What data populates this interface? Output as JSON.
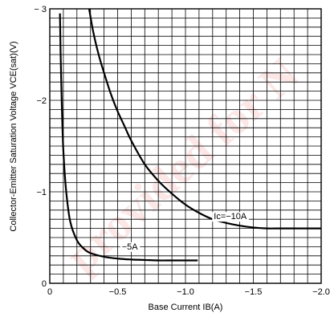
{
  "chart_data": {
    "type": "line",
    "xlabel": "Base Current IB(A)",
    "ylabel": "Collector-Emitter Saturation Voltage VCE(sat)(V)",
    "xlim": [
      0,
      -2.0
    ],
    "ylim": [
      0,
      -3
    ],
    "x_ticks": [
      0,
      -0.5,
      -1.0,
      -1.5,
      -2.0
    ],
    "x_tick_labels": [
      "0",
      "−0.5",
      "−1.0",
      "−1.5",
      "−2.0"
    ],
    "y_ticks": [
      0,
      -1,
      -2,
      -3
    ],
    "y_tick_labels": [
      "0",
      "−1",
      "−2",
      "− 3"
    ],
    "grid": true,
    "series": [
      {
        "name": "Ic=−10A",
        "x": [
          -0.29,
          -0.32,
          -0.36,
          -0.4,
          -0.45,
          -0.5,
          -0.55,
          -0.6,
          -0.7,
          -0.8,
          -0.9,
          -1.0,
          -1.1,
          -1.2,
          -1.3,
          -1.4,
          -1.5,
          -1.6,
          -1.7,
          -1.8,
          -1.9,
          -2.0
        ],
        "y": [
          -3.0,
          -2.75,
          -2.5,
          -2.3,
          -2.07,
          -1.88,
          -1.72,
          -1.56,
          -1.3,
          -1.12,
          -0.98,
          -0.86,
          -0.77,
          -0.7,
          -0.66,
          -0.63,
          -0.61,
          -0.6,
          -0.6,
          -0.6,
          -0.6,
          -0.6
        ]
      },
      {
        "name": "−5A",
        "x": [
          -0.075,
          -0.08,
          -0.09,
          -0.1,
          -0.12,
          -0.15,
          -0.2,
          -0.25,
          -0.3,
          -0.4,
          -0.5,
          -0.6,
          -0.7,
          -0.8,
          -0.9,
          -1.0,
          -1.09
        ],
        "y": [
          -2.95,
          -2.5,
          -1.88,
          -1.45,
          -1.02,
          -0.68,
          -0.47,
          -0.38,
          -0.33,
          -0.29,
          -0.27,
          -0.26,
          -0.255,
          -0.25,
          -0.25,
          -0.25,
          -0.25
        ]
      }
    ],
    "annotations": [
      {
        "text": "Ic=−10A",
        "at": [
          -1.33,
          -0.7
        ]
      },
      {
        "text": "−5A",
        "at": [
          -0.59,
          -0.37
        ]
      }
    ],
    "watermark": "provided for N"
  }
}
